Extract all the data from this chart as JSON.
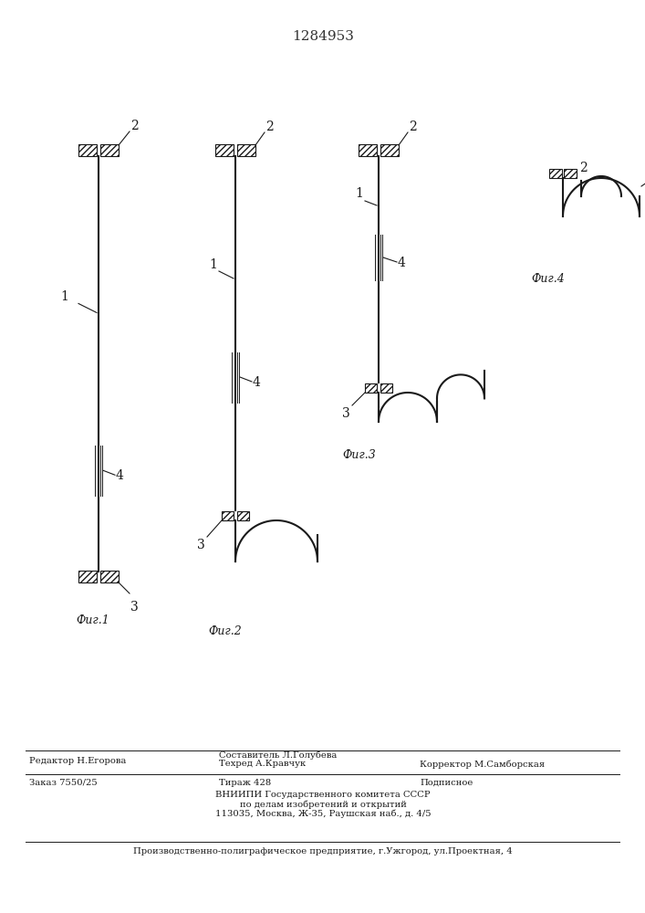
{
  "patent_number": "1284953",
  "background_color": "#ffffff",
  "line_color": "#1a1a1a",
  "fig_width": 7.07,
  "fig_height": 10.0,
  "fig1_label": "Фиг.1",
  "fig2_label": "Фиг.2",
  "fig3_label": "Фиг.3",
  "fig4_label": "Фиг.4",
  "bottom_editor": "Редактор Н.Егорова",
  "bottom_comp": "Составитель Л.Голубева",
  "bottom_tech": "Техред А.Кравчук",
  "bottom_corr": "Корректор М.Самборская",
  "bottom_order": "Заказ 7550/25",
  "bottom_tirazh": "Тираж 428",
  "bottom_podp": "Подписное",
  "bottom_vnipi1": "ВНИИПИ Государственного комитета СССР",
  "bottom_vnipi2": "по делам изобретений и открытий",
  "bottom_vnipi3": "113035, Москва, Ж-35, Раушская наб., д. 4/5",
  "bottom_prod": "Производственно-полиграфическое предприятие, г.Ужгород, ул.Проектная, 4"
}
